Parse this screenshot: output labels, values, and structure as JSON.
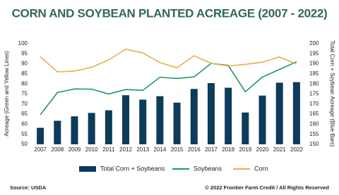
{
  "chart_data": {
    "type": "bar_line",
    "title": "CORN AND SOYBEAN PLANTED ACREAGE (2007 - 2022)",
    "y_label": "Acreage (Green and Yellow Lines)",
    "y2_label": "Total Corn + Soybean Acreage (Blue Bars)",
    "categories": [
      "2007",
      "2008",
      "2009",
      "2010",
      "2011",
      "2012",
      "2013",
      "2014",
      "2015",
      "2016",
      "2017",
      "2018",
      "2019",
      "2020",
      "2021",
      "2022"
    ],
    "ylim": [
      50,
      100
    ],
    "yticks": [
      50,
      55,
      60,
      65,
      70,
      75,
      80,
      85,
      90,
      95,
      100
    ],
    "y2lim": [
      150,
      200
    ],
    "y2ticks": [
      150,
      155,
      160,
      165,
      170,
      175,
      180,
      185,
      190,
      195,
      200
    ],
    "series": [
      {
        "name": "Total Corn + Soybeans",
        "type": "bar",
        "axis": "y2",
        "color": "#0d3b5a",
        "values": [
          158.2,
          161.7,
          163.9,
          165.6,
          166.9,
          174.4,
          172.2,
          173.9,
          170.7,
          177.5,
          180.4,
          178.1,
          165.8,
          174.2,
          180.6,
          180.9
        ]
      },
      {
        "name": "Soybeans",
        "type": "line",
        "color": "#1e9a5e",
        "values": [
          64.7,
          75.7,
          77.5,
          77.4,
          75.0,
          77.2,
          76.8,
          83.3,
          82.7,
          83.5,
          90.2,
          89.2,
          76.1,
          83.4,
          87.2,
          91.0
        ]
      },
      {
        "name": "Corn",
        "type": "line",
        "color": "#e8b04b",
        "values": [
          93.5,
          86.0,
          86.4,
          88.2,
          91.9,
          97.2,
          95.4,
          90.6,
          88.0,
          94.0,
          90.2,
          88.9,
          89.7,
          90.8,
          93.4,
          89.9
        ]
      }
    ],
    "source": "Source: USDA",
    "copyright": "© 2022 Frontier Farm Credit / All Rights Reserved"
  }
}
